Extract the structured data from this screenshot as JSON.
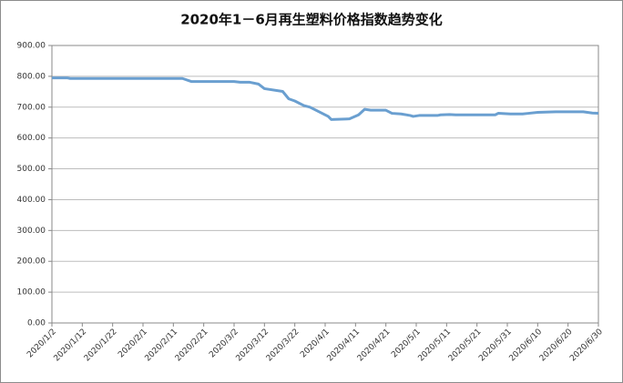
{
  "chart_data": {
    "type": "line",
    "title": "2020年1－6月再生塑料价格指数趋势变化",
    "x": [
      "2020/1/2",
      "2020/1/7",
      "2020/1/8",
      "2020/2/14",
      "2020/2/17",
      "2020/3/2",
      "2020/3/4",
      "2020/3/7",
      "2020/3/10",
      "2020/3/12",
      "2020/3/18",
      "2020/3/20",
      "2020/3/22",
      "2020/3/25",
      "2020/3/27",
      "2020/3/29",
      "2020/3/31",
      "2020/4/2",
      "2020/4/3",
      "2020/4/9",
      "2020/4/12",
      "2020/4/14",
      "2020/4/16",
      "2020/4/21",
      "2020/4/23",
      "2020/4/26",
      "2020/4/29",
      "2020/4/30",
      "2020/5/2",
      "2020/5/8",
      "2020/5/9",
      "2020/5/12",
      "2020/5/14",
      "2020/5/27",
      "2020/5/28",
      "2020/6/1",
      "2020/6/5",
      "2020/6/7",
      "2020/6/10",
      "2020/6/16",
      "2020/6/25",
      "2020/6/28",
      "2020/6/30"
    ],
    "series": [
      {
        "color": "#6a9fd0",
        "values": [
          795,
          795,
          793,
          793,
          783,
          783,
          781,
          781,
          775,
          760,
          751,
          727,
          720,
          705,
          700,
          690,
          680,
          670,
          660,
          662,
          675,
          693,
          690,
          690,
          680,
          678,
          673,
          670,
          673,
          673,
          675,
          676,
          675,
          675,
          680,
          678,
          678,
          680,
          683,
          685,
          685,
          681,
          680
        ]
      }
    ],
    "xlim": [
      "2020/1/2",
      "2020/6/30"
    ],
    "xticks": [
      "2020/1/2",
      "2020/1/12",
      "2020/1/22",
      "2020/2/1",
      "2020/2/11",
      "2020/2/21",
      "2020/3/2",
      "2020/3/12",
      "2020/3/22",
      "2020/4/1",
      "2020/4/11",
      "2020/4/21",
      "2020/5/1",
      "2020/5/11",
      "2020/5/21",
      "2020/5/31",
      "2020/6/10",
      "2020/6/20",
      "2020/6/30"
    ],
    "ylim": [
      0,
      900
    ],
    "yticks": [
      {
        "value": 0,
        "label": "0.00"
      },
      {
        "value": 100,
        "label": "100.00"
      },
      {
        "value": 200,
        "label": "200.00"
      },
      {
        "value": 300,
        "label": "300.00"
      },
      {
        "value": 400,
        "label": "400.00"
      },
      {
        "value": 500,
        "label": "500.00"
      },
      {
        "value": 600,
        "label": "600.00"
      },
      {
        "value": 700,
        "label": "700.00"
      },
      {
        "value": 800,
        "label": "800.00"
      },
      {
        "value": 900,
        "label": "900.00"
      }
    ],
    "grid": true
  }
}
